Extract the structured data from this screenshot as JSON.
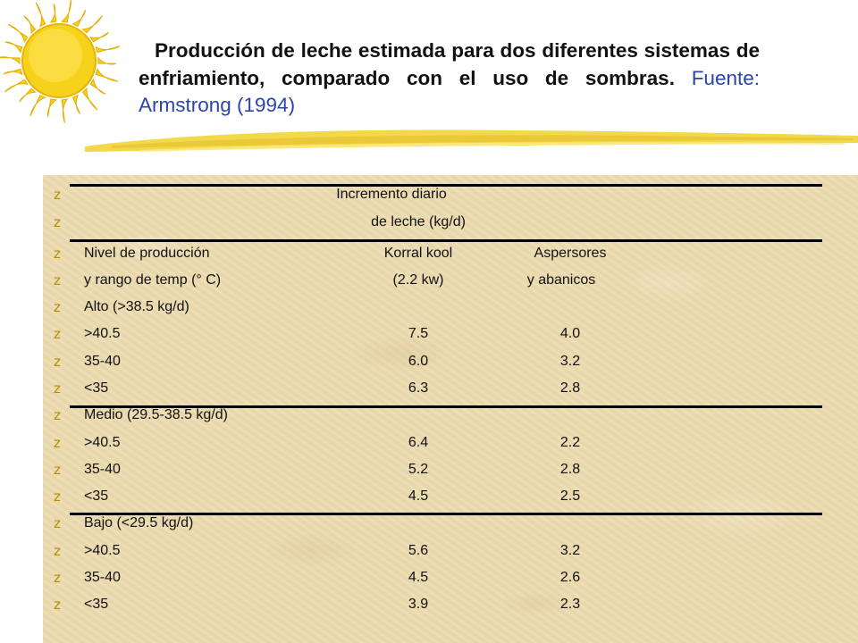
{
  "title": {
    "bold_text": "Producción de leche estimada para dos diferentes sistemas de enfriamiento, comparado con el uso de sombras.",
    "source_text": "Fuente: Armstrong (1994)"
  },
  "decor": {
    "sun_icon": "sun-icon",
    "bullet_glyph": "z",
    "bullet_color": "#b88a00",
    "sun_color": "#f7d21c",
    "stroke_color": "#f2d94a",
    "panel_color": "#ecdcb2"
  },
  "table": {
    "header_line1": "Incremento diario",
    "header_line2": "de leche (kg/d)",
    "col_label_1": "Nivel de producción",
    "col_label_2": "y rango de temp (° C)",
    "col1_name_1": "Korral kool",
    "col1_name_2": "(2.2 kw)",
    "col2_name_1": "Aspersores",
    "col2_name_2": "y abanicos",
    "groups": [
      {
        "name": "Alto (>38.5 kg/d)",
        "rows": [
          {
            "range": ">40.5",
            "korral": "7.5",
            "asp": "4.0"
          },
          {
            "range": "35-40",
            "korral": "6.0",
            "asp": "3.2"
          },
          {
            "range": "<35",
            "korral": "6.3",
            "asp": "2.8"
          }
        ]
      },
      {
        "name": "Medio (29.5-38.5 kg/d)",
        "rows": [
          {
            "range": ">40.5",
            "korral": "6.4",
            "asp": "2.2"
          },
          {
            "range": "35-40",
            "korral": "5.2",
            "asp": "2.8"
          },
          {
            "range": "<35",
            "korral": "4.5",
            "asp": "2.5"
          }
        ]
      },
      {
        "name": "Bajo (<29.5 kg/d)",
        "rows": [
          {
            "range": ">40.5",
            "korral": "5.6",
            "asp": "3.2"
          },
          {
            "range": "35-40",
            "korral": "4.5",
            "asp": "2.6"
          },
          {
            "range": "<35",
            "korral": "3.9",
            "asp": "2.3"
          }
        ]
      }
    ]
  }
}
